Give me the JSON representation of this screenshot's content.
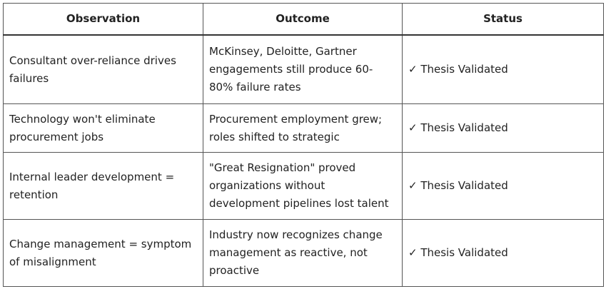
{
  "table": {
    "columns": [
      "Observation",
      "Outcome",
      "Status"
    ],
    "rows": [
      [
        "Consultant over-reliance drives failures",
        "McKinsey, Deloitte, Gartner engagements still produce 60-80% failure rates",
        "✓ Thesis Validated"
      ],
      [
        "Technology won't eliminate procurement jobs",
        "Procurement employment grew; roles shifted to strategic",
        "✓ Thesis Validated"
      ],
      [
        "Internal leader development = retention",
        "\"Great Resignation\" proved organizations without development pipelines lost talent",
        "✓ Thesis Validated"
      ],
      [
        "Change management = symptom of misalignment",
        "Industry now recognizes change management as reactive, not proactive",
        "✓ Thesis Validated"
      ]
    ]
  }
}
